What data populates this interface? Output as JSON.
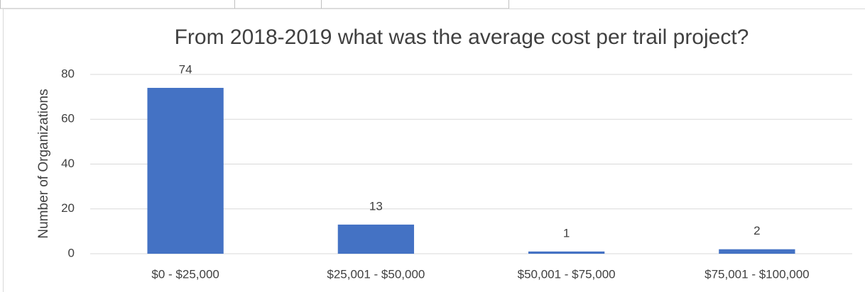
{
  "chart_data": {
    "type": "bar",
    "title": "From 2018-2019 what was the average cost per trail project?",
    "y_label": "Number of Organizations",
    "categories": [
      "$0 - $25,000",
      "$25,001 - $50,000",
      "$50,001 - $75,000",
      "$75,001 - $100,000"
    ],
    "values": [
      74,
      13,
      1,
      2
    ],
    "color": "#4472c4",
    "ylim": [
      0,
      80
    ],
    "yticks": [
      0,
      20,
      40,
      60,
      80
    ],
    "grid": true
  }
}
